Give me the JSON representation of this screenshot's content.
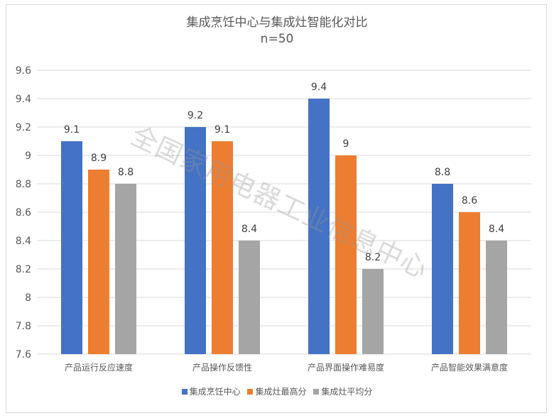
{
  "chart_data": {
    "type": "bar",
    "title": "集成烹饪中心与集成灶智能化对比",
    "subtitle": "n=50",
    "categories": [
      "产品运行反应速度",
      "产品操作反馈性",
      "产品界面操作难易度",
      "产品智能效果满意度"
    ],
    "series": [
      {
        "name": "集成烹饪中心",
        "color": "#4472c4",
        "values": [
          9.1,
          9.2,
          9.4,
          8.8
        ]
      },
      {
        "name": "集成灶最高分",
        "color": "#ed7d31",
        "values": [
          8.9,
          9.1,
          9.0,
          8.6
        ]
      },
      {
        "name": "集成灶平均分",
        "color": "#a5a5a5",
        "values": [
          8.8,
          8.4,
          8.2,
          8.4
        ]
      }
    ],
    "ylim": [
      7.6,
      9.6
    ],
    "yticks": [
      "7.6",
      "7.8",
      "8",
      "8.2",
      "8.4",
      "8.6",
      "8.8",
      "9",
      "9.2",
      "9.4",
      "9.6"
    ],
    "data_labels": true,
    "grid": true,
    "legend": "bottom",
    "watermark": "全国家用电器工业信息中心"
  }
}
